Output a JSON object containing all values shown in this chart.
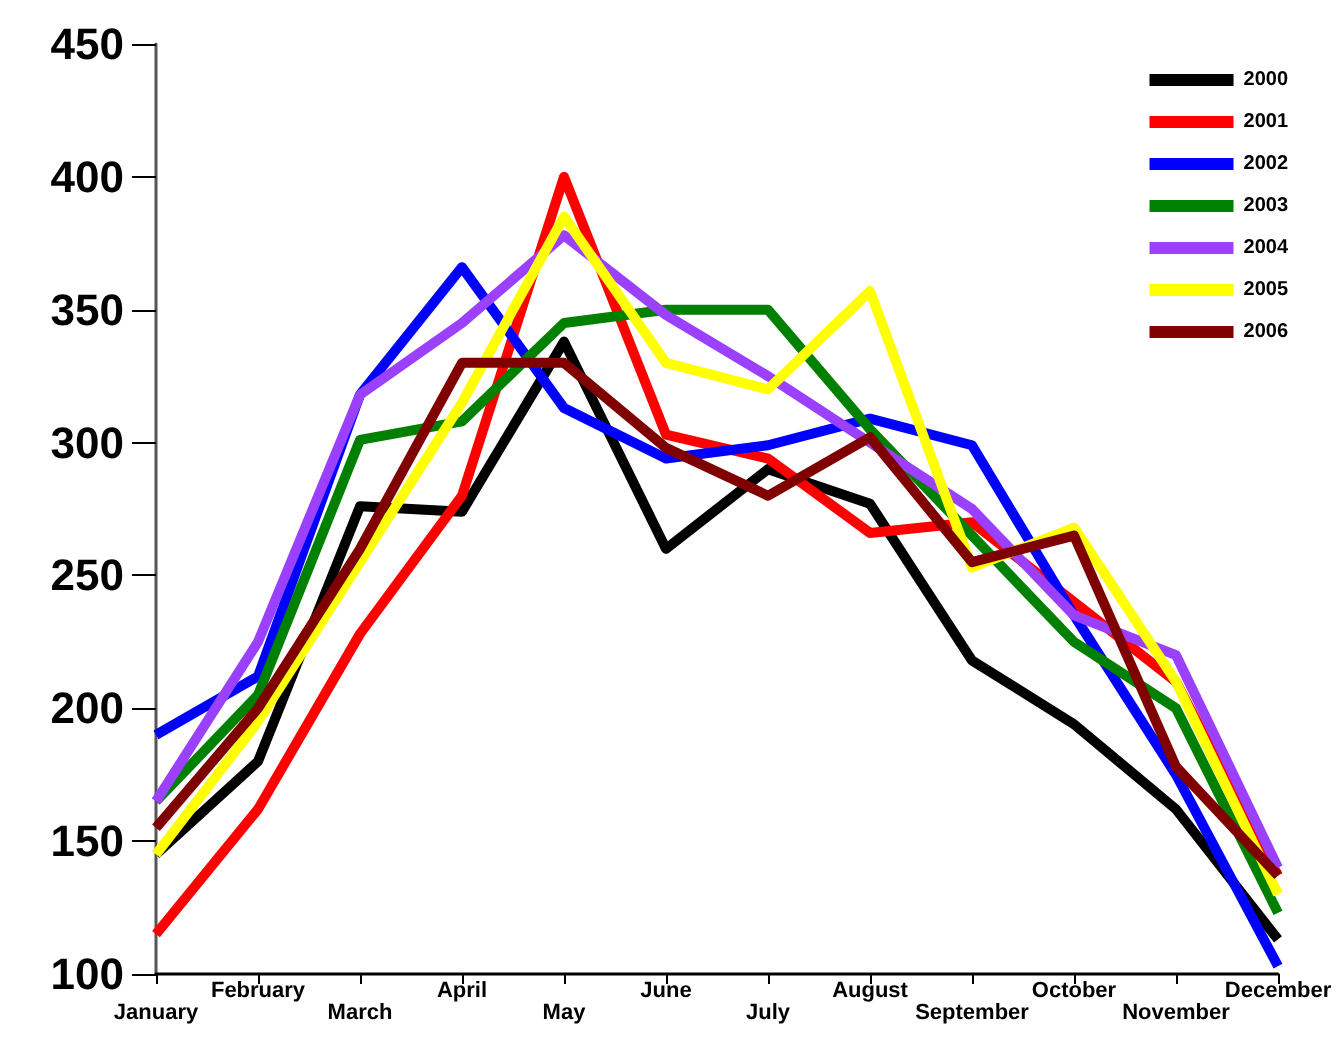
{
  "chart_data": {
    "type": "line",
    "categories": [
      "January",
      "February",
      "March",
      "April",
      "May",
      "June",
      "July",
      "August",
      "September",
      "October",
      "November",
      "December"
    ],
    "series": [
      {
        "name": "2000",
        "color": "#000000",
        "values": [
          145,
          180,
          276,
          274,
          338,
          260,
          290,
          277,
          218,
          194,
          162,
          113
        ]
      },
      {
        "name": "2001",
        "color": "#ff0000",
        "values": [
          115,
          162,
          228,
          280,
          400,
          303,
          294,
          266,
          270,
          240,
          210,
          137
        ]
      },
      {
        "name": "2002",
        "color": "#0000ff",
        "values": [
          190,
          212,
          318,
          366,
          313,
          294,
          299,
          309,
          299,
          235,
          175,
          103
        ]
      },
      {
        "name": "2003",
        "color": "#008000",
        "values": [
          165,
          205,
          301,
          308,
          345,
          350,
          350,
          305,
          265,
          225,
          200,
          123
        ]
      },
      {
        "name": "2004",
        "color": "#9b40ff",
        "values": [
          165,
          225,
          318,
          345,
          378,
          348,
          325,
          300,
          275,
          235,
          220,
          140
        ]
      },
      {
        "name": "2005",
        "color": "#ffff00",
        "values": [
          145,
          195,
          255,
          315,
          385,
          330,
          320,
          357,
          253,
          268,
          210,
          130
        ]
      },
      {
        "name": "2006",
        "color": "#800000",
        "values": [
          155,
          200,
          260,
          330,
          330,
          298,
          280,
          302,
          255,
          265,
          178,
          137
        ]
      }
    ],
    "ylim": [
      100,
      450
    ],
    "yticks": [
      100,
      150,
      200,
      250,
      300,
      350,
      400,
      450
    ],
    "grid": false,
    "legend": "top right",
    "marker": "none",
    "line_style": "solid"
  }
}
